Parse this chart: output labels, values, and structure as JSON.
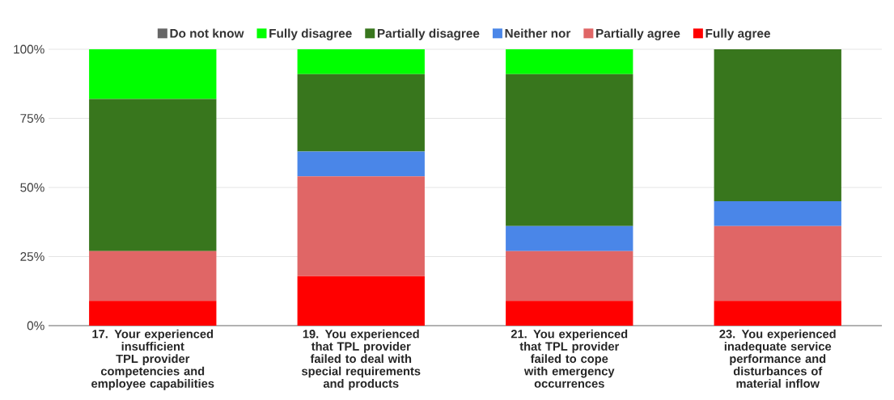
{
  "chart_data": {
    "type": "bar",
    "stacked": true,
    "categories": [
      "17. Your experienced insufficient TPL provider competencies and employee capabilities",
      "19. You experienced that TPL provider failed to deal with special requirements and products",
      "21. You experienced that TPL provider failed to cope with emergency occurrences",
      "23. You experienced inadequate service performance and disturbances of material inflow"
    ],
    "series": [
      {
        "name": "Fully agree",
        "color": "#ff0000",
        "values": [
          9,
          18,
          9,
          9
        ]
      },
      {
        "name": "Partially agree",
        "color": "#e06666",
        "values": [
          18,
          36,
          18,
          27
        ]
      },
      {
        "name": "Neither nor",
        "color": "#4a86e8",
        "values": [
          0,
          9,
          9,
          9
        ]
      },
      {
        "name": "Partially disagree",
        "color": "#38761d",
        "values": [
          55,
          28,
          55,
          55
        ]
      },
      {
        "name": "Fully disagree",
        "color": "#00ff00",
        "values": [
          18,
          9,
          9,
          0
        ]
      },
      {
        "name": "Do not know",
        "color": "#666666",
        "values": [
          0,
          0,
          0,
          0
        ]
      }
    ],
    "ylim": [
      0,
      100
    ],
    "yticks": [
      {
        "value": 0,
        "label": "0%"
      },
      {
        "value": 25,
        "label": "25%"
      },
      {
        "value": 50,
        "label": "50%"
      },
      {
        "value": 75,
        "label": "75%"
      },
      {
        "value": 100,
        "label": "100%"
      }
    ],
    "grid": "y",
    "legend": "top"
  }
}
